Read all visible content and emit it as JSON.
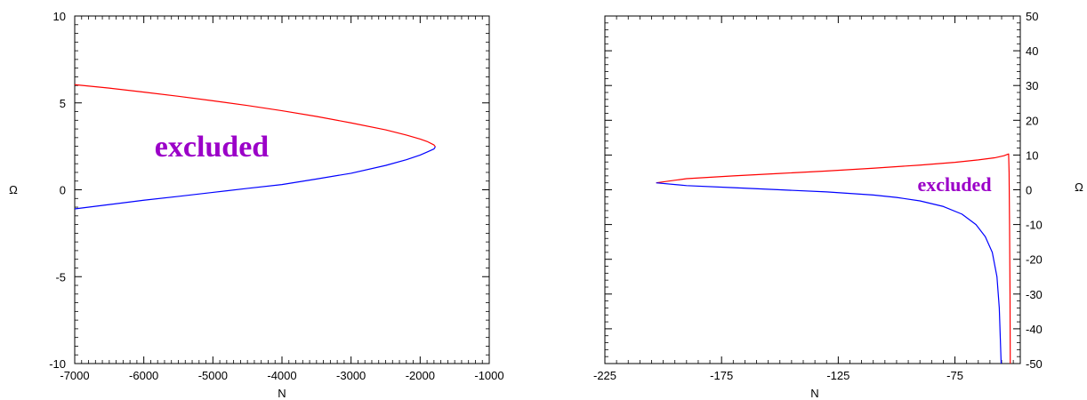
{
  "chart_data": [
    {
      "type": "line",
      "title": "",
      "xlabel": "N",
      "ylabel": "Ω",
      "xlim": [
        -7000,
        -1000
      ],
      "ylim": [
        -10,
        10
      ],
      "x_ticks": [
        -7000,
        -6000,
        -5000,
        -4000,
        -3000,
        -2000,
        -1000
      ],
      "x_tick_labels": [
        "-7000",
        "-6000",
        "-5000",
        "-4000",
        "-3000",
        "-2000",
        "-1000"
      ],
      "y_ticks": [
        -10,
        -5,
        0,
        5,
        10
      ],
      "y_tick_labels": [
        "-10",
        "-5",
        "0",
        "5",
        "10"
      ],
      "y_axis_side": "left",
      "annotation": "excluded",
      "series": [
        {
          "color": "#ff0000",
          "x": [
            -7000,
            -6500,
            -6000,
            -5500,
            -5000,
            -4500,
            -4000,
            -3500,
            -3000,
            -2500,
            -2200,
            -2000,
            -1900,
            -1800,
            -1780
          ],
          "y": [
            6.05,
            5.85,
            5.62,
            5.38,
            5.12,
            4.85,
            4.55,
            4.22,
            3.85,
            3.45,
            3.15,
            2.92,
            2.78,
            2.58,
            2.47
          ]
        },
        {
          "color": "#0000ff",
          "x": [
            -7000,
            -6500,
            -6000,
            -5500,
            -5000,
            -4500,
            -4000,
            -3500,
            -3000,
            -2500,
            -2200,
            -2000,
            -1900,
            -1800,
            -1780
          ],
          "y": [
            -1.1,
            -0.85,
            -0.6,
            -0.38,
            -0.15,
            0.08,
            0.3,
            0.62,
            0.95,
            1.4,
            1.73,
            2.0,
            2.17,
            2.35,
            2.47
          ]
        }
      ]
    },
    {
      "type": "line",
      "title": "",
      "xlabel": "N",
      "ylabel": "Ω",
      "xlim": [
        -225,
        -47
      ],
      "ylim": [
        -50,
        50
      ],
      "x_ticks": [
        -225,
        -175,
        -125,
        -75
      ],
      "x_tick_labels": [
        "-225",
        "-175",
        "-125",
        "-75"
      ],
      "y_ticks": [
        -50,
        -40,
        -30,
        -20,
        -10,
        0,
        10,
        20,
        30,
        40,
        50
      ],
      "y_tick_labels": [
        "-50",
        "-40",
        "-30",
        "-20",
        "-10",
        "0",
        "10",
        "20",
        "30",
        "40",
        "50"
      ],
      "y_axis_side": "right",
      "annotation": "excluded",
      "series": [
        {
          "color": "#ff0000",
          "x": [
            -203,
            -190,
            -170,
            -150,
            -130,
            -110,
            -90,
            -75,
            -65,
            -58,
            -54,
            -52,
            -51.8,
            -51.6,
            -51.4,
            -51.3
          ],
          "y": [
            2,
            3.2,
            4.0,
            4.7,
            5.4,
            6.2,
            7.1,
            7.9,
            8.6,
            9.2,
            9.8,
            10.3,
            5,
            -10,
            -30,
            -50
          ]
        },
        {
          "color": "#0000ff",
          "x": [
            -203,
            -190,
            -170,
            -150,
            -130,
            -110,
            -100,
            -90,
            -80,
            -72,
            -66,
            -62,
            -59,
            -57,
            -56,
            -55.2
          ],
          "y": [
            2,
            1.2,
            0.6,
            0.0,
            -0.6,
            -1.5,
            -2.2,
            -3.2,
            -4.8,
            -7.0,
            -10.0,
            -13.5,
            -18.0,
            -25.0,
            -34.0,
            -50.0
          ]
        }
      ]
    }
  ]
}
